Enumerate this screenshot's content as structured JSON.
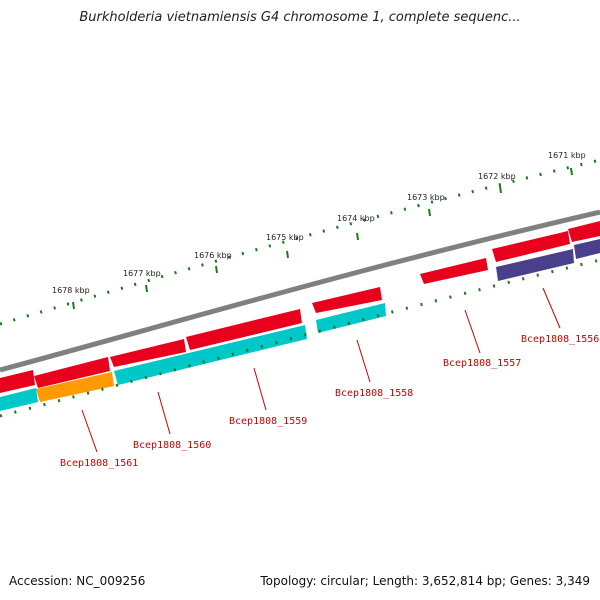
{
  "title": "Burkholderia vietnamiensis G4 chromosome 1, complete sequenc...",
  "footer": {
    "accession": "Accession: NC_009256",
    "summary": "Topology: circular; Length: 3,652,814 bp; Genes: 3,349"
  },
  "kbp_labels": [
    "1671 kbp",
    "1672 kbp",
    "1673 kbp",
    "1674 kbp",
    "1675 kbp",
    "1676 kbp",
    "1677 kbp",
    "1678 kbp"
  ],
  "gene_labels": [
    "Bcep1808_1556",
    "Bcep1808_1557",
    "Bcep1808_1558",
    "Bcep1808_1559",
    "Bcep1808_1560",
    "Bcep1808_1561"
  ],
  "colors": {
    "backbone": "#808080",
    "forward_gene": "#e8001c",
    "cds_cyan": "#00c8c8",
    "cds_orange": "#ff9a00",
    "cds_purple": "#4a3f8a",
    "ticks": "#1a7a1a",
    "gene_label": "#cc0000"
  }
}
